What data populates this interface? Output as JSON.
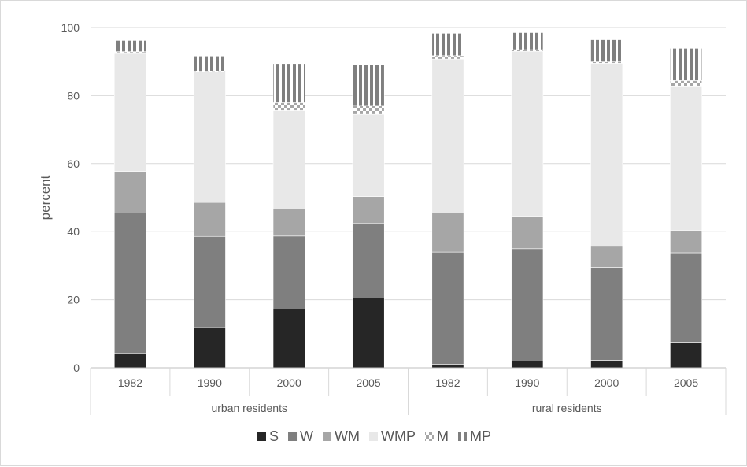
{
  "chart_data": {
    "type": "bar",
    "stacked": true,
    "ylabel": "percent",
    "ylim": [
      0,
      100
    ],
    "yticks": [
      0,
      20,
      40,
      60,
      80,
      100
    ],
    "grid": true,
    "legend_position": "bottom",
    "groups": [
      {
        "label": "urban residents",
        "categories": [
          "1982",
          "1990",
          "2000",
          "2005"
        ]
      },
      {
        "label": "rural residents",
        "categories": [
          "1982",
          "1990",
          "2000",
          "2005"
        ]
      }
    ],
    "series": [
      {
        "name": "S",
        "color": "#262626",
        "pattern": "solid",
        "values": [
          4.2,
          11.8,
          17.2,
          20.5,
          1.0,
          2.0,
          2.2,
          7.5
        ]
      },
      {
        "name": "W",
        "color": "#7f7f7f",
        "pattern": "solid",
        "values": [
          41.3,
          26.8,
          21.5,
          21.9,
          33.0,
          33.0,
          27.3,
          26.3
        ]
      },
      {
        "name": "WM",
        "color": "#a6a6a6",
        "pattern": "solid",
        "values": [
          12.2,
          10.0,
          7.9,
          7.9,
          11.5,
          9.5,
          6.2,
          6.6
        ]
      },
      {
        "name": "WMP",
        "color": "#e8e8e8",
        "pattern": "solid",
        "values": [
          34.9,
          38.3,
          29.0,
          24.2,
          45.2,
          48.5,
          53.8,
          42.4
        ]
      },
      {
        "name": "M",
        "color": "#a6a6a6",
        "pattern": "checker",
        "values": [
          0.3,
          0.3,
          2.3,
          2.6,
          1.0,
          0.5,
          0.4,
          1.6
        ]
      },
      {
        "name": "MP",
        "color": "#7f7f7f",
        "pattern": "stripes",
        "values": [
          3.3,
          4.4,
          11.5,
          11.9,
          6.6,
          5.0,
          6.5,
          9.5
        ]
      }
    ]
  }
}
